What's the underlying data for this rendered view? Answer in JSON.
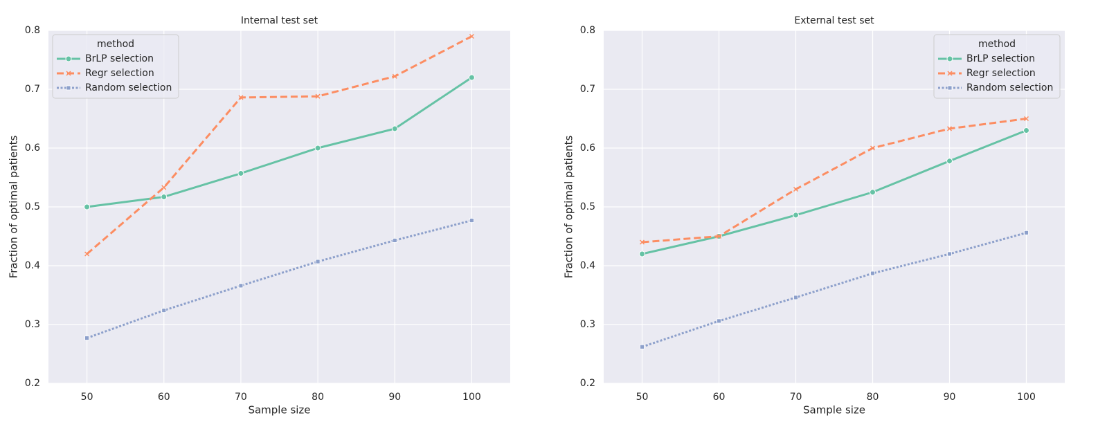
{
  "chart_data": [
    {
      "type": "line",
      "title": "Internal test set",
      "xlabel": "Sample size",
      "ylabel": "Fraction of optimal patients",
      "x": [
        50,
        60,
        70,
        80,
        90,
        100
      ],
      "series": [
        {
          "name": "BrLP selection",
          "color": "#66c2a5",
          "style": "solid",
          "marker": "o",
          "values": [
            0.5,
            0.517,
            0.557,
            0.6,
            0.633,
            0.72
          ]
        },
        {
          "name": "Regr selection",
          "color": "#fc8d62",
          "style": "dashed",
          "marker": "x",
          "values": [
            0.42,
            0.533,
            0.686,
            0.688,
            0.722,
            0.79
          ]
        },
        {
          "name": "Random selection",
          "color": "#8da0cb",
          "style": "dotted",
          "marker": "s",
          "values": [
            0.277,
            0.324,
            0.366,
            0.407,
            0.443,
            0.477
          ]
        }
      ],
      "xlim": [
        45,
        105
      ],
      "xticks": [
        50,
        60,
        70,
        80,
        90,
        100
      ],
      "ylim": [
        0.2,
        0.8
      ],
      "yticks": [
        0.2,
        0.3,
        0.4,
        0.5,
        0.6,
        0.7,
        0.8
      ],
      "grid": true,
      "legend_title": "method",
      "legend": "upper left"
    },
    {
      "type": "line",
      "title": "External test set",
      "xlabel": "Sample size",
      "ylabel": "Fraction of optimal patients",
      "x": [
        50,
        60,
        70,
        80,
        90,
        100
      ],
      "series": [
        {
          "name": "BrLP selection",
          "color": "#66c2a5",
          "style": "solid",
          "marker": "o",
          "values": [
            0.42,
            0.45,
            0.486,
            0.525,
            0.578,
            0.63
          ]
        },
        {
          "name": "Regr selection",
          "color": "#fc8d62",
          "style": "dashed",
          "marker": "x",
          "values": [
            0.44,
            0.45,
            0.53,
            0.6,
            0.633,
            0.65
          ]
        },
        {
          "name": "Random selection",
          "color": "#8da0cb",
          "style": "dotted",
          "marker": "s",
          "values": [
            0.262,
            0.306,
            0.346,
            0.387,
            0.42,
            0.456
          ]
        }
      ],
      "xlim": [
        45,
        105
      ],
      "xticks": [
        50,
        60,
        70,
        80,
        90,
        100
      ],
      "ylim": [
        0.2,
        0.8
      ],
      "yticks": [
        0.2,
        0.3,
        0.4,
        0.5,
        0.6,
        0.7,
        0.8
      ],
      "grid": true,
      "legend_title": "method",
      "legend": "upper right"
    }
  ]
}
